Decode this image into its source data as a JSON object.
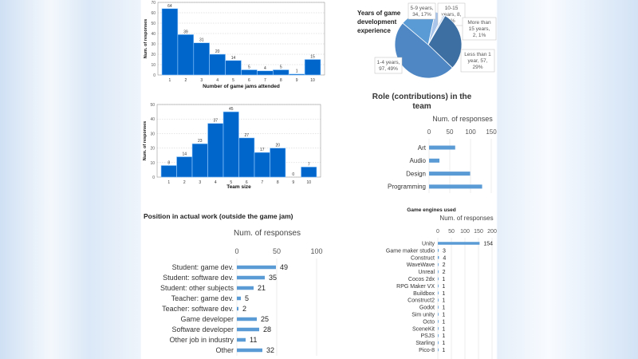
{
  "chart_data": [
    {
      "type": "bar",
      "xlabel": "Number of game jams attended",
      "ylabel": "Num. of responses",
      "categories": [
        "1",
        "2",
        "3",
        "4",
        "5",
        "6",
        "7",
        "8",
        "9",
        "10"
      ],
      "values": [
        64,
        39,
        31,
        20,
        14,
        5,
        4,
        5,
        1,
        15
      ],
      "ylim": [
        0,
        70
      ],
      "yticks": [
        0,
        10,
        20,
        30,
        40,
        50,
        60,
        70
      ],
      "grid": true,
      "color": "#0066cc"
    },
    {
      "type": "bar",
      "xlabel": "Team size",
      "ylabel": "Num. of responses",
      "categories": [
        "1",
        "2",
        "3",
        "4",
        "5",
        "6",
        "7",
        "8",
        "9",
        "10"
      ],
      "values": [
        8,
        14,
        23,
        37,
        45,
        27,
        17,
        20,
        0,
        7
      ],
      "ylim": [
        0,
        50
      ],
      "yticks": [
        0,
        10,
        20,
        30,
        40,
        50
      ],
      "grid": true,
      "color": "#0066cc"
    },
    {
      "type": "pie",
      "title": "Years of game development experience",
      "slices": [
        {
          "label": "10-15 years, 8, 4%",
          "value": 8,
          "color": "#a9c6ea"
        },
        {
          "label": "More than 15 years, 2, 1%",
          "value": 2,
          "color": "#c9dcf2"
        },
        {
          "label": "Less than 1 year, 57, 29%",
          "value": 57,
          "color": "#3d6fa3"
        },
        {
          "label": "1-4 years, 97, 49%",
          "value": 97,
          "color": "#4e87c4"
        },
        {
          "label": "5-9 years, 34, 17%",
          "value": 34,
          "color": "#5b9bd5"
        }
      ]
    },
    {
      "type": "bar",
      "orientation": "horizontal",
      "title": "Role (contributions) in the team",
      "xlabel": "Num. of responses",
      "xticks": [
        0,
        50,
        100,
        150
      ],
      "xlim": [
        0,
        150
      ],
      "categories": [
        "Art",
        "Audio",
        "Design",
        "Programming"
      ],
      "values": [
        63,
        25,
        99,
        128
      ],
      "color": "#5b9bd5"
    },
    {
      "type": "bar",
      "orientation": "horizontal",
      "title": "Position in actual work (outside the game jam)",
      "xlabel": "Num. of responses",
      "xticks": [
        0,
        50,
        100
      ],
      "xlim": [
        0,
        100
      ],
      "categories": [
        "Student: game dev.",
        "Student: software dev.",
        "Student: other subjects",
        "Teacher: game dev.",
        "Teacher: software dev.",
        "Game developer",
        "Software developer",
        "Other job in industry",
        "Other"
      ],
      "values": [
        49,
        35,
        21,
        5,
        2,
        25,
        28,
        11,
        32
      ],
      "color": "#5b9bd5"
    },
    {
      "type": "bar",
      "orientation": "horizontal",
      "title": "Game engines used",
      "xlabel": "Num. of responses",
      "xticks": [
        0,
        50,
        100,
        150,
        200
      ],
      "xlim": [
        0,
        200
      ],
      "categories": [
        "Unity",
        "Game maker studio",
        "Construct",
        "WaveWave",
        "Unreal",
        "Cocos 2dx",
        "RPG Maker VX",
        "Buildbox",
        "Construct2",
        "Godot",
        "Sim unity",
        "Octo",
        "SceneKit",
        "PSJS",
        "Starling",
        "Pico-8"
      ],
      "values": [
        154,
        3,
        4,
        2,
        2,
        1,
        1,
        1,
        1,
        1,
        1,
        1,
        1,
        1,
        1,
        1
      ],
      "color": "#5b9bd5"
    }
  ]
}
